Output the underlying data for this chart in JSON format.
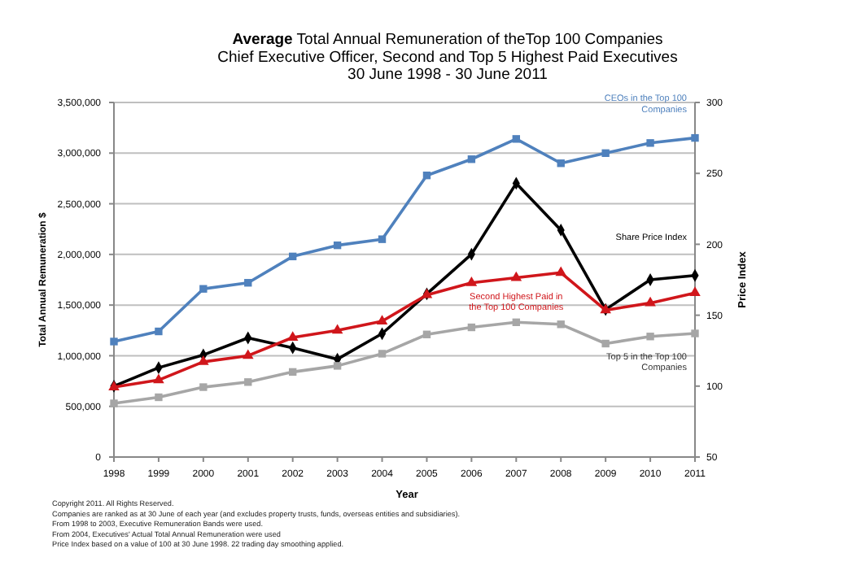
{
  "chart_data": {
    "type": "line",
    "title": "Average Total Annual Remuneration of theTop 100 Companies",
    "subtitle": "Chief Executive Officer, Second and Top 5 Highest Paid Executives\n30 June 1998 - 30 June 2011",
    "xlabel": "Year",
    "ylabel": "Total Annual Remuneration $",
    "y2label": "Price Index",
    "categories": [
      "1998",
      "1999",
      "2000",
      "2001",
      "2002",
      "2003",
      "2004",
      "2005",
      "2006",
      "2007",
      "2008",
      "2009",
      "2010",
      "2011"
    ],
    "series": [
      {
        "name": "CEOs in the Top 100 Companies",
        "color": "#4f81bd",
        "marker": "square",
        "values": [
          1140000,
          1240000,
          1660000,
          1720000,
          1980000,
          2090000,
          2150000,
          2780000,
          2940000,
          3140000,
          2900000,
          3000000,
          3100000,
          3150000
        ]
      },
      {
        "name": "Share Price Index",
        "color": "#000000",
        "marker": "diamond",
        "axis": "y2",
        "values": [
          100,
          113,
          122,
          134,
          127,
          119,
          137,
          165,
          193,
          243,
          210,
          154,
          175,
          178
        ]
      },
      {
        "name": "Second Highest Paid in the Top 100 Companies",
        "color": "#d0161b",
        "marker": "triangle",
        "values": [
          690000,
          760000,
          940000,
          1000000,
          1180000,
          1250000,
          1340000,
          1600000,
          1720000,
          1770000,
          1820000,
          1450000,
          1520000,
          1620000
        ]
      },
      {
        "name": "Top 5 in the Top 100 Companies",
        "color": "#a6a6a6",
        "marker": "square",
        "values": [
          530000,
          590000,
          690000,
          740000,
          840000,
          900000,
          1020000,
          1210000,
          1280000,
          1330000,
          1310000,
          1120000,
          1190000,
          1220000
        ]
      }
    ],
    "ylim": [
      0,
      3500000
    ],
    "yticks": [
      {
        "value": 0,
        "label": "0"
      },
      {
        "value": 500000,
        "label": "500,000"
      },
      {
        "value": 1000000,
        "label": "1,000,000"
      },
      {
        "value": 1500000,
        "label": "1,500,000"
      },
      {
        "value": 2000000,
        "label": "2,000,000"
      },
      {
        "value": 2500000,
        "label": "2,500,000"
      },
      {
        "value": 3000000,
        "label": "3,000,000"
      },
      {
        "value": 3500000,
        "label": "3,500,000"
      }
    ],
    "y2lim": [
      50,
      300
    ],
    "y2ticks": [
      50,
      100,
      150,
      200,
      250,
      300
    ],
    "grid": "y",
    "annotations": [
      "Copyright 2011. All Rights Reserved.",
      "Companies are ranked as at 30 June of each year (and excludes property trusts, funds, overseas entities and subsidiaries).",
      "From 1998 to 2003, Executive Remuneration Bands were used.",
      "From 2004, Executives' Actual Total Annual Remuneration were used",
      "Price Index based on a value of 100 at 30 June 1998. 22 trading day smoothing applied."
    ]
  }
}
